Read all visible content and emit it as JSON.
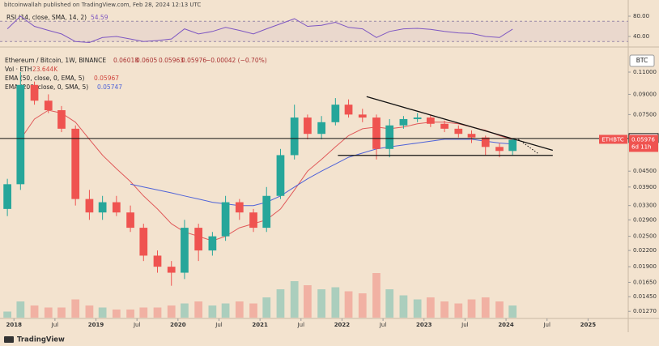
{
  "header": {
    "published": "bitcoinwallah published on TradingView.com, Feb 28, 2024 12:13 UTC",
    "brand": "TradingView"
  },
  "chart_data": {
    "type": "candlestick",
    "symbol": "Ethereum / Bitcoin, 1W, BINANCE",
    "currency": "BTC",
    "ticker": "ETHBTC",
    "legend_ohlc": {
      "open": 0.06018,
      "high": 0.0605,
      "low": 0.05963,
      "close": 0.05976,
      "change": "−0.00042 (−0.70%)"
    },
    "volume_label": "Vol · ETH",
    "volume_value": "23.644K",
    "countdown": "6d 11h",
    "log_scale": true,
    "grid": false,
    "up_color": "#26a69a",
    "down_color": "#ef5350",
    "xlim": [
      2017.83,
      2025.49
    ],
    "xticks": [
      {
        "value": 2018,
        "label": "2018"
      },
      {
        "value": 2018.5,
        "label": "Jul"
      },
      {
        "value": 2019,
        "label": "2019"
      },
      {
        "value": 2019.5,
        "label": "Jul"
      },
      {
        "value": 2020,
        "label": "2020"
      },
      {
        "value": 2020.5,
        "label": "Jul"
      },
      {
        "value": 2021,
        "label": "2021"
      },
      {
        "value": 2021.5,
        "label": "Jul"
      },
      {
        "value": 2022,
        "label": "2022"
      },
      {
        "value": 2022.5,
        "label": "Jul"
      },
      {
        "value": 2023,
        "label": "2023"
      },
      {
        "value": 2023.5,
        "label": "Jul"
      },
      {
        "value": 2024,
        "label": "2024"
      },
      {
        "value": 2024.5,
        "label": "Jul"
      },
      {
        "value": 2025,
        "label": "2025"
      }
    ],
    "ylim": [
      0.012,
      0.134
    ],
    "yticks": [
      {
        "value": 0.11,
        "label": "0.11000"
      },
      {
        "value": 0.09,
        "label": "0.09000"
      },
      {
        "value": 0.075,
        "label": "0.07500"
      },
      {
        "value": 0.045,
        "label": "0.04500"
      },
      {
        "value": 0.039,
        "label": "0.03900"
      },
      {
        "value": 0.033,
        "label": "0.03300"
      },
      {
        "value": 0.029,
        "label": "0.02900"
      },
      {
        "value": 0.025,
        "label": "0.02500"
      },
      {
        "value": 0.022,
        "label": "0.02200"
      },
      {
        "value": 0.019,
        "label": "0.01900"
      },
      {
        "value": 0.0165,
        "label": "0.01650"
      },
      {
        "value": 0.0145,
        "label": "0.01450"
      },
      {
        "value": 0.0127,
        "label": "0.01270"
      }
    ],
    "x": [
      2017.92,
      2018.08,
      2018.25,
      2018.42,
      2018.58,
      2018.75,
      2018.92,
      2019.08,
      2019.25,
      2019.42,
      2019.58,
      2019.75,
      2019.92,
      2020.08,
      2020.25,
      2020.42,
      2020.58,
      2020.75,
      2020.92,
      2021.08,
      2021.25,
      2021.42,
      2021.58,
      2021.75,
      2021.92,
      2022.08,
      2022.25,
      2022.42,
      2022.58,
      2022.75,
      2022.92,
      2023.08,
      2023.25,
      2023.42,
      2023.58,
      2023.75,
      2023.92,
      2024.08
    ],
    "open": [
      0.032,
      0.04,
      0.098,
      0.085,
      0.078,
      0.066,
      0.035,
      0.031,
      0.034,
      0.031,
      0.027,
      0.021,
      0.019,
      0.018,
      0.027,
      0.022,
      0.025,
      0.034,
      0.031,
      0.027,
      0.036,
      0.052,
      0.073,
      0.063,
      0.07,
      0.082,
      0.075,
      0.073,
      0.055,
      0.068,
      0.072,
      0.073,
      0.069,
      0.066,
      0.063,
      0.061,
      0.056,
      0.054
    ],
    "high": [
      0.042,
      0.11,
      0.101,
      0.09,
      0.081,
      0.068,
      0.038,
      0.036,
      0.036,
      0.033,
      0.028,
      0.022,
      0.02,
      0.029,
      0.028,
      0.026,
      0.036,
      0.035,
      0.032,
      0.039,
      0.055,
      0.082,
      0.075,
      0.074,
      0.087,
      0.086,
      0.079,
      0.075,
      0.072,
      0.074,
      0.076,
      0.075,
      0.071,
      0.068,
      0.065,
      0.062,
      0.058,
      0.0605
    ],
    "low": [
      0.03,
      0.038,
      0.082,
      0.076,
      0.064,
      0.033,
      0.029,
      0.029,
      0.03,
      0.026,
      0.02,
      0.018,
      0.016,
      0.017,
      0.02,
      0.021,
      0.024,
      0.029,
      0.026,
      0.026,
      0.035,
      0.05,
      0.06,
      0.06,
      0.068,
      0.073,
      0.07,
      0.05,
      0.051,
      0.066,
      0.07,
      0.067,
      0.064,
      0.061,
      0.058,
      0.052,
      0.051,
      0.052
    ],
    "close": [
      0.04,
      0.098,
      0.085,
      0.078,
      0.066,
      0.035,
      0.031,
      0.034,
      0.031,
      0.027,
      0.021,
      0.019,
      0.018,
      0.027,
      0.022,
      0.025,
      0.034,
      0.031,
      0.027,
      0.036,
      0.052,
      0.073,
      0.063,
      0.07,
      0.082,
      0.075,
      0.073,
      0.055,
      0.068,
      0.072,
      0.073,
      0.069,
      0.066,
      0.063,
      0.061,
      0.056,
      0.054,
      0.05976
    ],
    "volume": [
      3,
      8,
      6,
      5,
      5,
      9,
      6,
      5,
      4,
      4,
      5,
      5,
      6,
      7,
      8,
      6,
      7,
      8,
      7,
      10,
      14,
      18,
      16,
      14,
      15,
      13,
      12,
      22,
      14,
      11,
      9,
      10,
      8,
      7,
      9,
      10,
      8,
      6
    ],
    "series": [
      {
        "name": "EMA (50, close, 0, EMA, 5)",
        "last": 0.05967,
        "color": "#e05a5a",
        "values": [
          null,
          0.06,
          0.072,
          0.078,
          0.076,
          0.07,
          0.06,
          0.052,
          0.046,
          0.041,
          0.036,
          0.032,
          0.028,
          0.026,
          0.025,
          0.024,
          0.025,
          0.027,
          0.028,
          0.029,
          0.032,
          0.038,
          0.045,
          0.05,
          0.056,
          0.062,
          0.066,
          0.067,
          0.066,
          0.067,
          0.069,
          0.07,
          0.07,
          0.069,
          0.067,
          0.065,
          0.062,
          0.05967
        ]
      },
      {
        "name": "EMA (200, close, 0, SMA, 5)",
        "last": 0.05747,
        "color": "#4f63d8",
        "values": [
          null,
          null,
          null,
          null,
          null,
          null,
          null,
          null,
          null,
          0.04,
          0.039,
          0.038,
          0.037,
          0.036,
          0.035,
          0.034,
          0.0335,
          0.033,
          0.033,
          0.034,
          0.036,
          0.039,
          0.042,
          0.045,
          0.048,
          0.051,
          0.053,
          0.055,
          0.056,
          0.057,
          0.058,
          0.059,
          0.06,
          0.06,
          0.06,
          0.059,
          0.058,
          0.05747
        ]
      }
    ],
    "level": 0.06044,
    "lines": [
      {
        "x": [
          2022.3,
          2024.57
        ],
        "y": [
          0.0882,
          0.0543
        ],
        "style": "solid"
      },
      {
        "x": [
          2021.95,
          2024.57
        ],
        "y": [
          0.0519,
          0.0519
        ],
        "style": "solid"
      },
      {
        "x": [
          2024.15,
          2024.4
        ],
        "y": [
          0.06,
          0.0525
        ],
        "style": "dotted"
      }
    ],
    "rsi": {
      "name": "RSI (14, close, SMA, 14, 2)",
      "last": 54.59,
      "color": "#7e57c2",
      "ylim": [
        24,
        92.8
      ],
      "yticks": [
        {
          "value": 80,
          "label": "80.00"
        },
        {
          "value": 40,
          "label": "40.00"
        }
      ],
      "bands": [
        70,
        30
      ],
      "values": [
        55,
        80,
        60,
        52,
        45,
        30,
        28,
        38,
        40,
        35,
        30,
        32,
        35,
        55,
        45,
        50,
        58,
        52,
        45,
        55,
        65,
        75,
        60,
        62,
        68,
        58,
        55,
        38,
        50,
        55,
        56,
        54,
        50,
        47,
        46,
        40,
        38,
        54.59
      ]
    }
  }
}
